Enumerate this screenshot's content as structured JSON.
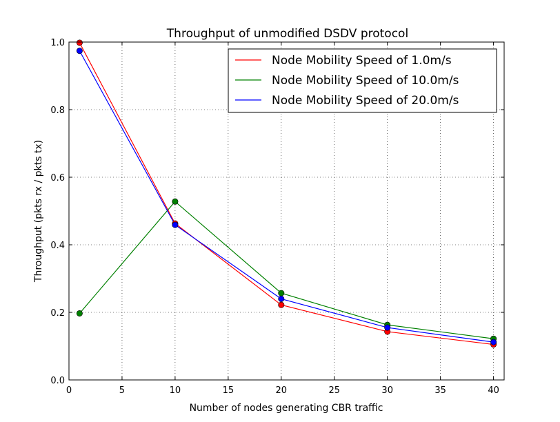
{
  "chart_data": {
    "type": "line",
    "title": "Throughput of unmodified DSDV protocol",
    "xlabel": "Number of nodes generating CBR traffic",
    "ylabel": "Throughput (pkts rx / pkts tx)",
    "xlim": [
      0,
      41
    ],
    "ylim": [
      0,
      1.0
    ],
    "xticks": [
      0,
      5,
      10,
      15,
      20,
      25,
      30,
      35,
      40
    ],
    "yticks": [
      0.0,
      0.2,
      0.4,
      0.6,
      0.8,
      1.0
    ],
    "xtick_labels": [
      "0",
      "5",
      "10",
      "15",
      "20",
      "25",
      "30",
      "35",
      "40"
    ],
    "ytick_labels": [
      "0.0",
      "0.2",
      "0.4",
      "0.6",
      "0.8",
      "1.0"
    ],
    "grid": true,
    "legend_position": "top-right",
    "x": [
      1,
      10,
      20,
      30,
      40
    ],
    "series": [
      {
        "name": "Node Mobility Speed of 1.0m/s",
        "color": "#ff0000",
        "values": [
          0.998,
          0.463,
          0.222,
          0.143,
          0.105
        ]
      },
      {
        "name": "Node Mobility Speed of 10.0m/s",
        "color": "#008000",
        "values": [
          0.197,
          0.528,
          0.257,
          0.163,
          0.122
        ]
      },
      {
        "name": "Node Mobility Speed of 20.0m/s",
        "color": "#0000ff",
        "values": [
          0.974,
          0.459,
          0.24,
          0.155,
          0.112
        ]
      }
    ]
  }
}
